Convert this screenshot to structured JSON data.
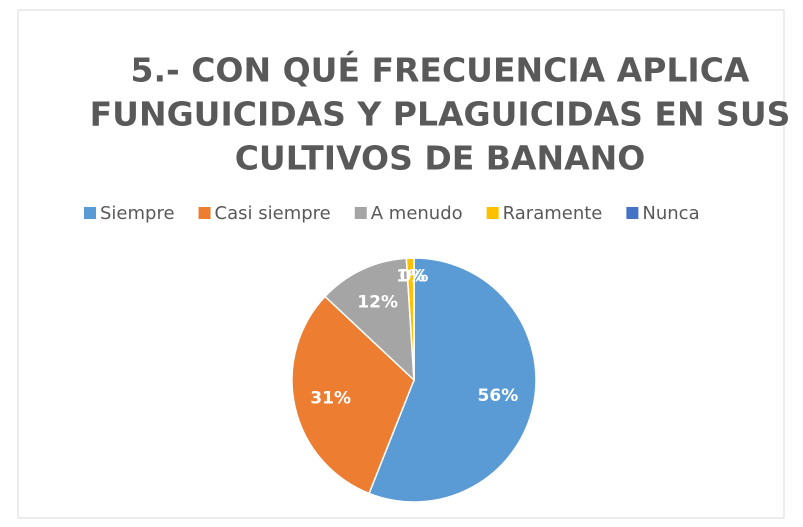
{
  "chart_data": {
    "type": "pie",
    "title": [
      "5.- CON QUÉ FRECUENCIA APLICA",
      "FUNGUICIDAS Y PLAGUICIDAS EN SUS",
      "CULTIVOS DE BANANO"
    ],
    "categories": [
      "Siempre",
      "Casi siempre",
      "A menudo",
      "Raramente",
      "Nunca"
    ],
    "values": [
      56,
      31,
      12,
      1,
      0
    ],
    "value_labels": [
      "56%",
      "31%",
      "12%",
      "1%",
      "0%"
    ],
    "colors": [
      "#5b9bd5",
      "#ed7d31",
      "#a5a5a5",
      "#ffc000",
      "#4472c4"
    ],
    "legend": "top"
  }
}
